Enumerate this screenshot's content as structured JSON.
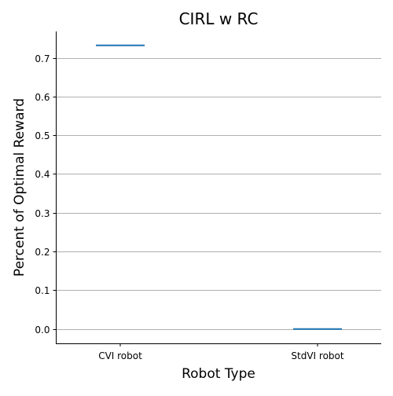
{
  "chart_data": {
    "type": "line",
    "title": "CIRL w RC",
    "xlabel": "Robot Type",
    "ylabel": "Percent of Optimal Reward",
    "categories": [
      "CVI robot",
      "StdVI robot"
    ],
    "values": [
      0.732,
      0.0
    ],
    "ylim": [
      -0.037,
      0.768
    ],
    "yticks": [
      "0.0",
      "0.1",
      "0.2",
      "0.3",
      "0.4",
      "0.5",
      "0.6",
      "0.7"
    ],
    "grid": "horizontal",
    "colors": {
      "series": "#1f77b4",
      "grid": "#b0b0b0",
      "axis": "#000000"
    }
  }
}
